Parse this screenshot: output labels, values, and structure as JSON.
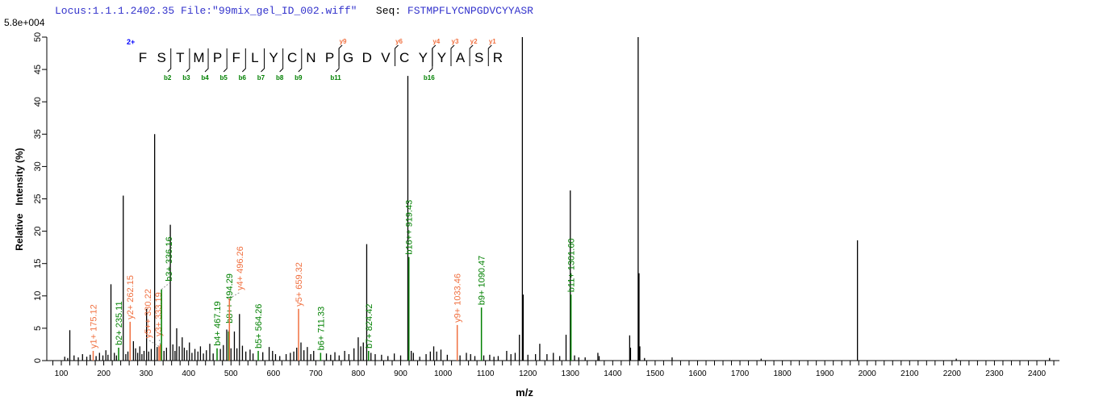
{
  "header": {
    "locus": "Locus:1.1.1.2402.35",
    "file": "File:\"99mix_gel_ID_002.wiff\"",
    "seq_label": "Seq:",
    "sequence": "FSTMPFLYCNPGDVCYYASR"
  },
  "scale_label": "5.8e+004",
  "colors": {
    "b_ion": "#008000",
    "y_ion": "#f07040",
    "peak": "#000000",
    "charge": "#0000ff",
    "header": "#3333cc"
  },
  "fragment_map": {
    "charge": "2+",
    "residues": [
      "F",
      "S",
      "T",
      "M",
      "P",
      "F",
      "L",
      "Y",
      "C",
      "N",
      "P",
      "G",
      "D",
      "V",
      "C",
      "Y",
      "Y",
      "A",
      "S",
      "R"
    ],
    "b_ions": [
      2,
      3,
      4,
      5,
      6,
      7,
      8,
      9,
      11,
      16
    ],
    "y_ions": [
      9,
      6,
      4,
      3,
      2,
      1
    ]
  },
  "chart_data": {
    "type": "bar",
    "xlabel": "m/z",
    "ylabel": "Relative   Intensity (%)",
    "xlim": [
      66,
      2453
    ],
    "ylim": [
      0,
      50
    ],
    "xticks": [
      100,
      200,
      300,
      400,
      500,
      600,
      700,
      800,
      900,
      1000,
      1100,
      1200,
      1300,
      1400,
      1500,
      1600,
      1700,
      1800,
      1900,
      2000,
      2100,
      2200,
      2300,
      2400
    ],
    "yticks": [
      0,
      5,
      10,
      15,
      20,
      25,
      30,
      35,
      40,
      45,
      50
    ],
    "grid": false,
    "peaks": [
      [
        108,
        0.6
      ],
      [
        115,
        0.4
      ],
      [
        120,
        4.7
      ],
      [
        130,
        0.8
      ],
      [
        140,
        0.5
      ],
      [
        150,
        1.0
      ],
      [
        160,
        0.6
      ],
      [
        168,
        0.9
      ],
      [
        182,
        0.7
      ],
      [
        190,
        1.2
      ],
      [
        198,
        0.8
      ],
      [
        205,
        1.6
      ],
      [
        210,
        0.9
      ],
      [
        217,
        11.8
      ],
      [
        225,
        1.2
      ],
      [
        230,
        0.8
      ],
      [
        246,
        25.5
      ],
      [
        252,
        1.0
      ],
      [
        257,
        1.4
      ],
      [
        270,
        3.0
      ],
      [
        275,
        1.9
      ],
      [
        280,
        1.2
      ],
      [
        285,
        2.2
      ],
      [
        290,
        1.0
      ],
      [
        295,
        1.5
      ],
      [
        301,
        8.0
      ],
      [
        306,
        1.4
      ],
      [
        312,
        1.8
      ],
      [
        320,
        35.0
      ],
      [
        326,
        2.1
      ],
      [
        342,
        1.5
      ],
      [
        348,
        2.0
      ],
      [
        357,
        21.0
      ],
      [
        363,
        2.5
      ],
      [
        368,
        1.5
      ],
      [
        372,
        5.0
      ],
      [
        378,
        2.2
      ],
      [
        385,
        3.6
      ],
      [
        390,
        2.0
      ],
      [
        396,
        1.6
      ],
      [
        402,
        2.8
      ],
      [
        408,
        1.2
      ],
      [
        415,
        1.8
      ],
      [
        422,
        1.4
      ],
      [
        428,
        2.2
      ],
      [
        435,
        1.1
      ],
      [
        442,
        1.6
      ],
      [
        450,
        2.6
      ],
      [
        458,
        1.1
      ],
      [
        475,
        1.8
      ],
      [
        482,
        2.4
      ],
      [
        490,
        4.8
      ],
      [
        500,
        1.9
      ],
      [
        508,
        4.5
      ],
      [
        514,
        1.9
      ],
      [
        520,
        7.2
      ],
      [
        527,
        2.3
      ],
      [
        535,
        1.4
      ],
      [
        545,
        1.7
      ],
      [
        552,
        1.1
      ],
      [
        575,
        1.3
      ],
      [
        590,
        2.1
      ],
      [
        598,
        1.5
      ],
      [
        605,
        1.0
      ],
      [
        615,
        0.7
      ],
      [
        630,
        1.0
      ],
      [
        640,
        1.2
      ],
      [
        648,
        1.4
      ],
      [
        655,
        2.0
      ],
      [
        665,
        2.8
      ],
      [
        672,
        1.6
      ],
      [
        680,
        2.1
      ],
      [
        688,
        1.0
      ],
      [
        695,
        1.5
      ],
      [
        725,
        1.1
      ],
      [
        735,
        0.9
      ],
      [
        745,
        1.3
      ],
      [
        755,
        0.8
      ],
      [
        768,
        1.5
      ],
      [
        778,
        1.0
      ],
      [
        790,
        1.9
      ],
      [
        800,
        3.6
      ],
      [
        806,
        2.2
      ],
      [
        812,
        2.8
      ],
      [
        820,
        18.0
      ],
      [
        830,
        1.2
      ],
      [
        840,
        1.0
      ],
      [
        855,
        0.9
      ],
      [
        870,
        0.7
      ],
      [
        885,
        1.1
      ],
      [
        900,
        0.8
      ],
      [
        917,
        44.0
      ],
      [
        925,
        1.5
      ],
      [
        930,
        1.2
      ],
      [
        945,
        0.6
      ],
      [
        960,
        1.0
      ],
      [
        970,
        1.4
      ],
      [
        978,
        2.2
      ],
      [
        985,
        1.4
      ],
      [
        995,
        1.7
      ],
      [
        1010,
        0.9
      ],
      [
        1040,
        0.8
      ],
      [
        1055,
        1.2
      ],
      [
        1065,
        1.0
      ],
      [
        1075,
        0.7
      ],
      [
        1096,
        0.8
      ],
      [
        1110,
        0.9
      ],
      [
        1120,
        0.6
      ],
      [
        1130,
        0.7
      ],
      [
        1150,
        1.5
      ],
      [
        1160,
        1.0
      ],
      [
        1170,
        1.2
      ],
      [
        1180,
        4.0
      ],
      [
        1187,
        50.0
      ],
      [
        1189,
        10.2
      ],
      [
        1200,
        0.9
      ],
      [
        1218,
        1.0
      ],
      [
        1228,
        2.6
      ],
      [
        1245,
        1.0
      ],
      [
        1260,
        1.2
      ],
      [
        1275,
        0.7
      ],
      [
        1290,
        4.0
      ],
      [
        1300,
        26.3
      ],
      [
        1310,
        0.8
      ],
      [
        1320,
        0.5
      ],
      [
        1335,
        0.5
      ],
      [
        1365,
        1.2
      ],
      [
        1368,
        0.7
      ],
      [
        1440,
        3.9
      ],
      [
        1442,
        2.0
      ],
      [
        1460,
        50.0
      ],
      [
        1462,
        13.5
      ],
      [
        1464,
        2.2
      ],
      [
        1475,
        0.4
      ],
      [
        1540,
        0.5
      ],
      [
        1750,
        0.3
      ],
      [
        1977,
        18.6
      ],
      [
        2210,
        0.3
      ],
      [
        2430,
        0.4
      ]
    ],
    "annotations": [
      {
        "label": "y1+ 175.12",
        "mz": 175.12,
        "intensity": 1.5,
        "ion": "y"
      },
      {
        "label": "b2+ 235.11",
        "mz": 235.11,
        "intensity": 2.0,
        "ion": "b"
      },
      {
        "label": "y2+ 262.15",
        "mz": 262.15,
        "intensity": 6.0,
        "ion": "y"
      },
      {
        "label": "y5++ 330.22",
        "mz": 330.22,
        "intensity": 2.2,
        "ion": "y"
      },
      {
        "label": "y3+ 333.19",
        "mz": 333.19,
        "intensity": 2.5,
        "ion": "y"
      },
      {
        "label": "b3+ 336.16",
        "mz": 336.16,
        "intensity": 11.0,
        "ion": "b"
      },
      {
        "label": "b4+ 467.19",
        "mz": 467.19,
        "intensity": 1.9,
        "ion": "b"
      },
      {
        "label": "b8++ 494.29",
        "mz": 494.29,
        "intensity": 4.5,
        "ion": "b"
      },
      {
        "label": "y4+ 496.26",
        "mz": 496.26,
        "intensity": 9.6,
        "ion": "y"
      },
      {
        "label": "b5+ 564.26",
        "mz": 564.26,
        "intensity": 1.5,
        "ion": "b"
      },
      {
        "label": "y5+ 659.32",
        "mz": 659.32,
        "intensity": 8.0,
        "ion": "y"
      },
      {
        "label": "b6+ 711.33",
        "mz": 711.33,
        "intensity": 1.2,
        "ion": "b"
      },
      {
        "label": "b7+ 824.42",
        "mz": 824.42,
        "intensity": 1.5,
        "ion": "b"
      },
      {
        "label": "b16++ 919.43",
        "mz": 919.43,
        "intensity": 16.0,
        "ion": "b"
      },
      {
        "label": "y9+ 1033.46",
        "mz": 1033.46,
        "intensity": 5.5,
        "ion": "y"
      },
      {
        "label": "b9+ 1090.47",
        "mz": 1090.47,
        "intensity": 8.2,
        "ion": "b"
      },
      {
        "label": "b11+ 1301.60",
        "mz": 1301.6,
        "intensity": 10.2,
        "ion": "b"
      }
    ]
  }
}
